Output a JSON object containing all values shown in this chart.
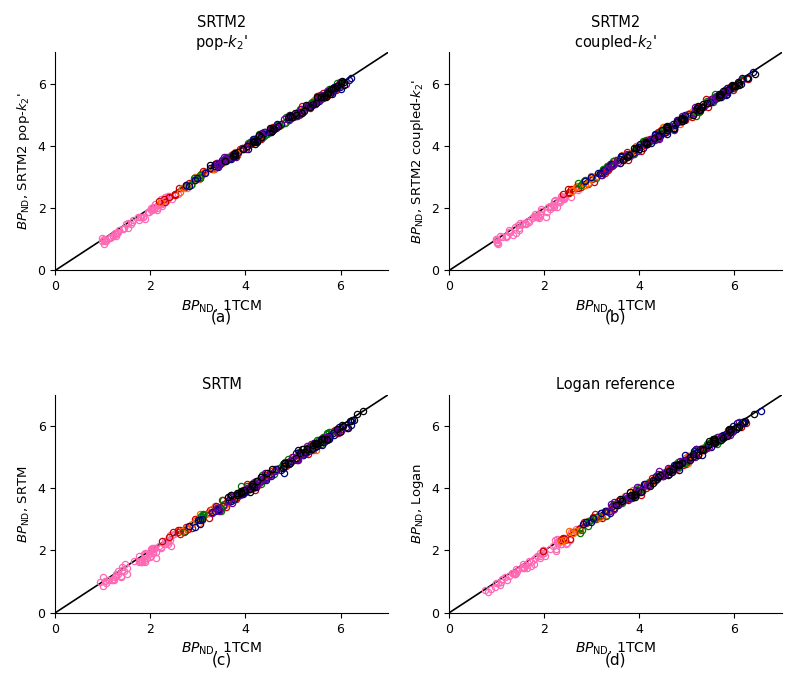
{
  "titles_line1": [
    "SRTM2",
    "SRTM2",
    "SRTM",
    "Logan reference"
  ],
  "titles_line2": [
    "pop-$k_2$'",
    "coupled-$k_2$'",
    "",
    ""
  ],
  "subplot_labels": [
    "(a)",
    "(b)",
    "(c)",
    "(d)"
  ],
  "xlim": [
    0,
    7
  ],
  "ylim": [
    0,
    7
  ],
  "xticks": [
    0,
    2,
    4,
    6
  ],
  "yticks": [
    0,
    2,
    4,
    6
  ],
  "xlabel": "$BP_{\\mathrm{ND}}$, 1TCM",
  "ylabels": [
    "$BP_{\\mathrm{ND}}$, SRTM2 pop-$k_2$'",
    "$BP_{\\mathrm{ND}}$, SRTM2 coupled-$k_2$'",
    "$BP_{\\mathrm{ND}}$, SRTM",
    "$BP_{\\mathrm{ND}}$, Logan"
  ],
  "colors": [
    "#FF69B4",
    "#CC0000",
    "#FF6600",
    "#007700",
    "#000080",
    "#660099",
    "#000000"
  ],
  "dark_blue": "#000066",
  "background": "#ffffff",
  "identity_line_color": "#000000",
  "markersize": 4.5,
  "linewidth": 1.2
}
